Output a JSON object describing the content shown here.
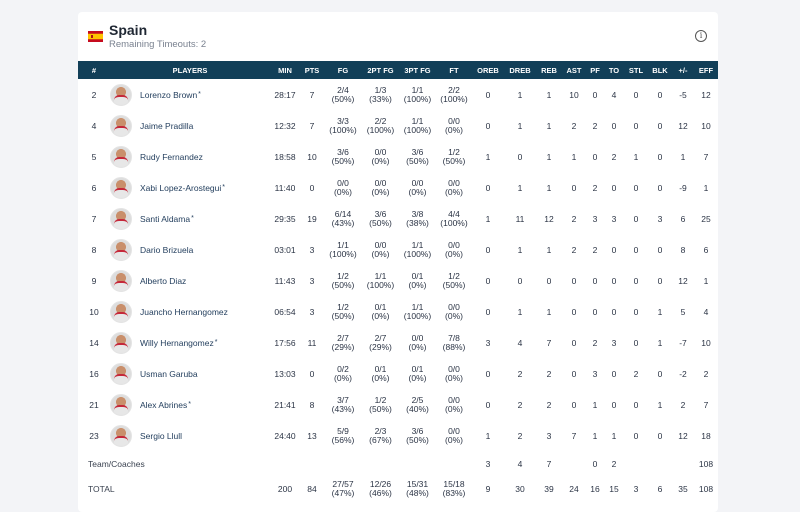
{
  "team": {
    "name": "Spain",
    "timeouts": "Remaining Timeouts: 2",
    "flag_colors": [
      "#c60b1e",
      "#ffc400"
    ]
  },
  "info_icon": "info-icon",
  "headers": [
    "#",
    "PLAYERS",
    "MIN",
    "PTS",
    "FG",
    "2PT FG",
    "3PT FG",
    "FT",
    "OREB",
    "DREB",
    "REB",
    "AST",
    "PF",
    "TO",
    "STL",
    "BLK",
    "+/-",
    "EFF"
  ],
  "players": [
    {
      "num": "2",
      "name": "Lorenzo Brown",
      "star": "*",
      "min": "28:17",
      "pts": "7",
      "fg": [
        "2/4",
        "(50%)"
      ],
      "fg2": [
        "1/3",
        "(33%)"
      ],
      "fg3": [
        "1/1",
        "(100%)"
      ],
      "ft": [
        "2/2",
        "(100%)"
      ],
      "oreb": "0",
      "dreb": "1",
      "reb": "1",
      "ast": "10",
      "pf": "0",
      "to": "4",
      "stl": "0",
      "blk": "0",
      "pm": "-5",
      "eff": "12"
    },
    {
      "num": "4",
      "name": "Jaime Pradilla",
      "star": "",
      "min": "12:32",
      "pts": "7",
      "fg": [
        "3/3",
        "(100%)"
      ],
      "fg2": [
        "2/2",
        "(100%)"
      ],
      "fg3": [
        "1/1",
        "(100%)"
      ],
      "ft": [
        "0/0",
        "(0%)"
      ],
      "oreb": "0",
      "dreb": "1",
      "reb": "1",
      "ast": "2",
      "pf": "2",
      "to": "0",
      "stl": "0",
      "blk": "0",
      "pm": "12",
      "eff": "10"
    },
    {
      "num": "5",
      "name": "Rudy Fernandez",
      "star": "",
      "min": "18:58",
      "pts": "10",
      "fg": [
        "3/6",
        "(50%)"
      ],
      "fg2": [
        "0/0",
        "(0%)"
      ],
      "fg3": [
        "3/6",
        "(50%)"
      ],
      "ft": [
        "1/2",
        "(50%)"
      ],
      "oreb": "1",
      "dreb": "0",
      "reb": "1",
      "ast": "1",
      "pf": "0",
      "to": "2",
      "stl": "1",
      "blk": "0",
      "pm": "1",
      "eff": "7"
    },
    {
      "num": "6",
      "name": "Xabi Lopez-Arostegui",
      "star": "*",
      "min": "11:40",
      "pts": "0",
      "fg": [
        "0/0",
        "(0%)"
      ],
      "fg2": [
        "0/0",
        "(0%)"
      ],
      "fg3": [
        "0/0",
        "(0%)"
      ],
      "ft": [
        "0/0",
        "(0%)"
      ],
      "oreb": "0",
      "dreb": "1",
      "reb": "1",
      "ast": "0",
      "pf": "2",
      "to": "0",
      "stl": "0",
      "blk": "0",
      "pm": "-9",
      "eff": "1"
    },
    {
      "num": "7",
      "name": "Santi Aldama",
      "star": "*",
      "min": "29:35",
      "pts": "19",
      "fg": [
        "6/14",
        "(43%)"
      ],
      "fg2": [
        "3/6",
        "(50%)"
      ],
      "fg3": [
        "3/8",
        "(38%)"
      ],
      "ft": [
        "4/4",
        "(100%)"
      ],
      "oreb": "1",
      "dreb": "11",
      "reb": "12",
      "ast": "2",
      "pf": "3",
      "to": "3",
      "stl": "0",
      "blk": "3",
      "pm": "6",
      "eff": "25"
    },
    {
      "num": "8",
      "name": "Dario Brizuela",
      "star": "",
      "min": "03:01",
      "pts": "3",
      "fg": [
        "1/1",
        "(100%)"
      ],
      "fg2": [
        "0/0",
        "(0%)"
      ],
      "fg3": [
        "1/1",
        "(100%)"
      ],
      "ft": [
        "0/0",
        "(0%)"
      ],
      "oreb": "0",
      "dreb": "1",
      "reb": "1",
      "ast": "2",
      "pf": "2",
      "to": "0",
      "stl": "0",
      "blk": "0",
      "pm": "8",
      "eff": "6"
    },
    {
      "num": "9",
      "name": "Alberto Diaz",
      "star": "",
      "min": "11:43",
      "pts": "3",
      "fg": [
        "1/2",
        "(50%)"
      ],
      "fg2": [
        "1/1",
        "(100%)"
      ],
      "fg3": [
        "0/1",
        "(0%)"
      ],
      "ft": [
        "1/2",
        "(50%)"
      ],
      "oreb": "0",
      "dreb": "0",
      "reb": "0",
      "ast": "0",
      "pf": "0",
      "to": "0",
      "stl": "0",
      "blk": "0",
      "pm": "12",
      "eff": "1"
    },
    {
      "num": "10",
      "name": "Juancho Hernangomez",
      "star": "",
      "min": "06:54",
      "pts": "3",
      "fg": [
        "1/2",
        "(50%)"
      ],
      "fg2": [
        "0/1",
        "(0%)"
      ],
      "fg3": [
        "1/1",
        "(100%)"
      ],
      "ft": [
        "0/0",
        "(0%)"
      ],
      "oreb": "0",
      "dreb": "1",
      "reb": "1",
      "ast": "0",
      "pf": "0",
      "to": "0",
      "stl": "0",
      "blk": "1",
      "pm": "5",
      "eff": "4"
    },
    {
      "num": "14",
      "name": "Willy Hernangomez",
      "star": "*",
      "min": "17:56",
      "pts": "11",
      "fg": [
        "2/7",
        "(29%)"
      ],
      "fg2": [
        "2/7",
        "(29%)"
      ],
      "fg3": [
        "0/0",
        "(0%)"
      ],
      "ft": [
        "7/8",
        "(88%)"
      ],
      "oreb": "3",
      "dreb": "4",
      "reb": "7",
      "ast": "0",
      "pf": "2",
      "to": "3",
      "stl": "0",
      "blk": "1",
      "pm": "-7",
      "eff": "10"
    },
    {
      "num": "16",
      "name": "Usman Garuba",
      "star": "",
      "min": "13:03",
      "pts": "0",
      "fg": [
        "0/2",
        "(0%)"
      ],
      "fg2": [
        "0/1",
        "(0%)"
      ],
      "fg3": [
        "0/1",
        "(0%)"
      ],
      "ft": [
        "0/0",
        "(0%)"
      ],
      "oreb": "0",
      "dreb": "2",
      "reb": "2",
      "ast": "0",
      "pf": "3",
      "to": "0",
      "stl": "2",
      "blk": "0",
      "pm": "-2",
      "eff": "2"
    },
    {
      "num": "21",
      "name": "Alex Abrines",
      "star": "*",
      "min": "21:41",
      "pts": "8",
      "fg": [
        "3/7",
        "(43%)"
      ],
      "fg2": [
        "1/2",
        "(50%)"
      ],
      "fg3": [
        "2/5",
        "(40%)"
      ],
      "ft": [
        "0/0",
        "(0%)"
      ],
      "oreb": "0",
      "dreb": "2",
      "reb": "2",
      "ast": "0",
      "pf": "1",
      "to": "0",
      "stl": "0",
      "blk": "1",
      "pm": "2",
      "eff": "7"
    },
    {
      "num": "23",
      "name": "Sergio Llull",
      "star": "",
      "min": "24:40",
      "pts": "13",
      "fg": [
        "5/9",
        "(56%)"
      ],
      "fg2": [
        "2/3",
        "(67%)"
      ],
      "fg3": [
        "3/6",
        "(50%)"
      ],
      "ft": [
        "0/0",
        "(0%)"
      ],
      "oreb": "1",
      "dreb": "2",
      "reb": "3",
      "ast": "7",
      "pf": "1",
      "to": "1",
      "stl": "0",
      "blk": "0",
      "pm": "12",
      "eff": "18"
    }
  ],
  "team_coaches": {
    "label": "Team/Coaches",
    "oreb": "3",
    "dreb": "4",
    "reb": "7",
    "ast": "",
    "pf": "0",
    "to": "2",
    "stl": "",
    "blk": "",
    "pm": "",
    "eff": "108"
  },
  "total": {
    "label": "TOTAL",
    "min": "200",
    "pts": "84",
    "fg": [
      "27/57",
      "(47%)"
    ],
    "fg2": [
      "12/26",
      "(46%)"
    ],
    "fg3": [
      "15/31",
      "(48%)"
    ],
    "ft": [
      "15/18",
      "(83%)"
    ],
    "oreb": "9",
    "dreb": "30",
    "reb": "39",
    "ast": "24",
    "pf": "16",
    "to": "15",
    "stl": "3",
    "blk": "6",
    "pm": "35",
    "eff": "108"
  }
}
